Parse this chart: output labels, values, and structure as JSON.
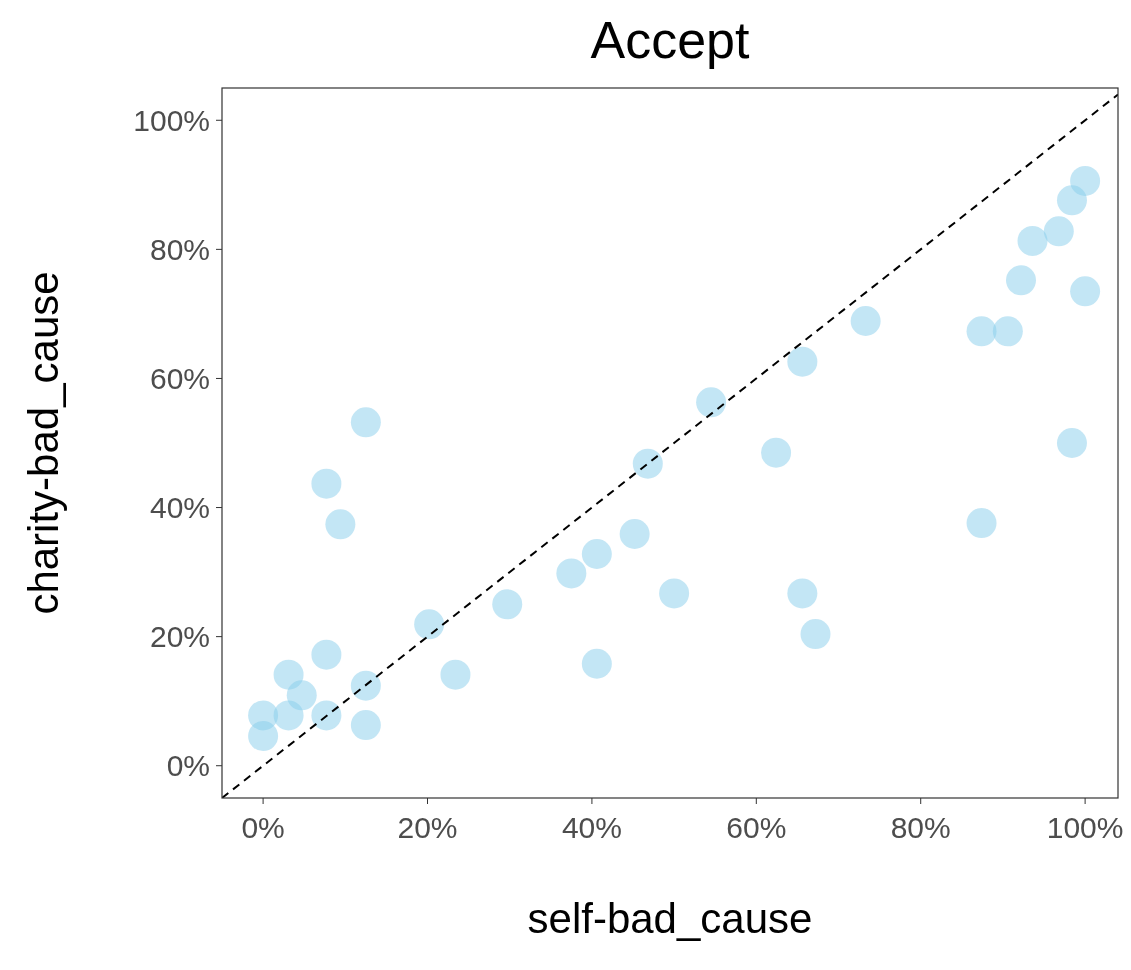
{
  "chart_data": {
    "type": "scatter",
    "title": "Accept",
    "xlabel": "self-bad_cause",
    "ylabel": "charity-bad_cause",
    "xlim": [
      -5,
      104
    ],
    "ylim": [
      -5,
      105
    ],
    "xticks": [
      {
        "value": 0,
        "label": "0%"
      },
      {
        "value": 20,
        "label": "20%"
      },
      {
        "value": 40,
        "label": "40%"
      },
      {
        "value": 60,
        "label": "60%"
      },
      {
        "value": 80,
        "label": "80%"
      },
      {
        "value": 100,
        "label": "100%"
      }
    ],
    "yticks": [
      {
        "value": 0,
        "label": "0%"
      },
      {
        "value": 20,
        "label": "20%"
      },
      {
        "value": 40,
        "label": "40%"
      },
      {
        "value": 60,
        "label": "60%"
      },
      {
        "value": 80,
        "label": "80%"
      },
      {
        "value": 100,
        "label": "100%"
      }
    ],
    "grid": false,
    "series": [
      {
        "marker": "circle",
        "color": "#87ceeb",
        "x": [
          0,
          0,
          3.1,
          3.1,
          4.7,
          7.7,
          7.7,
          7.7,
          9.4,
          12.5,
          12.5,
          12.5,
          20.2,
          23.4,
          29.7,
          37.5,
          40.6,
          40.6,
          45.2,
          46.8,
          50,
          54.5,
          62.4,
          65.6,
          65.6,
          67.2,
          73.3,
          87.4,
          90.6,
          87.4,
          92.2,
          93.6,
          96.8,
          98.4,
          100,
          100,
          98.4
        ],
        "values": [
          7.8,
          4.6,
          14.1,
          7.8,
          10.9,
          17.2,
          43.7,
          7.8,
          37.4,
          53.2,
          12.4,
          6.3,
          21.9,
          14.1,
          25,
          29.8,
          32.8,
          15.8,
          35.9,
          46.8,
          26.7,
          56.3,
          48.5,
          62.6,
          26.7,
          20.4,
          68.9,
          67.3,
          67.3,
          37.6,
          75.2,
          81.3,
          82.8,
          87.6,
          90.6,
          73.5,
          50
        ]
      },
      {
        "type": "line",
        "color": "#000000",
        "line_style": "dashed",
        "marker": "none",
        "x": [
          -5,
          104
        ],
        "values": [
          -5,
          104
        ]
      }
    ]
  }
}
